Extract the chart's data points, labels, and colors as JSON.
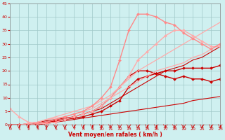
{
  "xlabel": "Vent moyen/en rafales ( km/h )",
  "bg_color": "#cff0f0",
  "grid_color": "#a0c8c8",
  "xlim": [
    0,
    23
  ],
  "ylim": [
    0,
    45
  ],
  "yticks": [
    0,
    5,
    10,
    15,
    20,
    25,
    30,
    35,
    40,
    45
  ],
  "xticks": [
    0,
    1,
    2,
    3,
    4,
    5,
    6,
    7,
    8,
    9,
    10,
    11,
    12,
    13,
    14,
    15,
    16,
    17,
    18,
    19,
    20,
    21,
    22,
    23
  ],
  "series": [
    {
      "x": [
        0,
        1,
        2,
        3,
        4,
        5,
        6,
        7,
        8,
        9,
        10,
        11,
        12,
        13,
        14,
        15,
        16,
        17,
        18,
        19,
        20,
        21,
        22,
        23
      ],
      "y": [
        0,
        0,
        0,
        0,
        0.5,
        1,
        1.5,
        2,
        2.5,
        3,
        3.5,
        4,
        4.5,
        5,
        5.5,
        6,
        6.5,
        7,
        7.5,
        8,
        9,
        9.5,
        10,
        10.5
      ],
      "color": "#cc0000",
      "linewidth": 0.8,
      "marker": null
    },
    {
      "x": [
        0,
        1,
        2,
        3,
        4,
        5,
        6,
        7,
        8,
        9,
        10,
        11,
        12,
        13,
        14,
        15,
        16,
        17,
        18,
        19,
        20,
        21,
        22,
        23
      ],
      "y": [
        0,
        0,
        0.5,
        1,
        1.5,
        2,
        2.5,
        3,
        4,
        5,
        6,
        8,
        10,
        12,
        14,
        16,
        18,
        20,
        21,
        22,
        24,
        25,
        27,
        29
      ],
      "color": "#cc0000",
      "linewidth": 0.8,
      "marker": null
    },
    {
      "x": [
        0,
        1,
        2,
        3,
        4,
        5,
        6,
        7,
        8,
        9,
        10,
        11,
        12,
        13,
        14,
        15,
        16,
        17,
        18,
        19,
        20,
        21,
        22,
        23
      ],
      "y": [
        0,
        0,
        0,
        0.5,
        1,
        1.5,
        2,
        2.5,
        3,
        4,
        5,
        7,
        9,
        14,
        17,
        18,
        19,
        20,
        20,
        21,
        21,
        21,
        21,
        22
      ],
      "color": "#cc0000",
      "linewidth": 1.0,
      "marker": "D",
      "markersize": 2.0
    },
    {
      "x": [
        0,
        1,
        2,
        3,
        4,
        5,
        6,
        7,
        8,
        9,
        10,
        11,
        12,
        13,
        14,
        15,
        16,
        17,
        18,
        19,
        20,
        21,
        22,
        23
      ],
      "y": [
        0,
        0,
        0,
        0.5,
        1,
        1.5,
        2,
        3,
        4,
        5,
        7,
        10,
        14,
        18,
        20,
        20,
        19,
        18,
        17,
        18,
        17,
        17,
        16,
        17
      ],
      "color": "#cc0000",
      "linewidth": 1.0,
      "marker": "D",
      "markersize": 2.0
    },
    {
      "x": [
        0,
        1,
        2,
        3,
        4,
        5,
        6,
        7,
        8,
        9,
        10,
        11,
        12,
        13,
        14,
        15,
        16,
        17,
        18,
        19,
        20,
        21,
        22,
        23
      ],
      "y": [
        0,
        0,
        0.5,
        1,
        2,
        3,
        4,
        5,
        6,
        7,
        9,
        11,
        14,
        17,
        20,
        22,
        24,
        26,
        28,
        30,
        32,
        34,
        36,
        38
      ],
      "color": "#ffaaaa",
      "linewidth": 0.9,
      "marker": null
    },
    {
      "x": [
        0,
        1,
        2,
        3,
        4,
        5,
        6,
        7,
        8,
        9,
        10,
        11,
        12,
        13,
        14,
        15,
        16,
        17,
        18,
        19,
        20,
        21,
        22,
        23
      ],
      "y": [
        0,
        0,
        0.5,
        1,
        2,
        2.5,
        3,
        4,
        5,
        6,
        8,
        10,
        12,
        14,
        16,
        18,
        20,
        21,
        22,
        23,
        25,
        26,
        28,
        30
      ],
      "color": "#ffaaaa",
      "linewidth": 0.9,
      "marker": null
    },
    {
      "x": [
        0,
        1,
        2,
        3,
        4,
        5,
        6,
        7,
        8,
        9,
        10,
        11,
        12,
        13,
        14,
        15,
        16,
        17,
        18,
        19,
        20,
        21,
        22,
        23
      ],
      "y": [
        6,
        3,
        1,
        0.5,
        0.5,
        1,
        2,
        3,
        4,
        5,
        7,
        10,
        14,
        18,
        24,
        27,
        30,
        33,
        35,
        35,
        33,
        31,
        29,
        29
      ],
      "color": "#ffaaaa",
      "linewidth": 1.0,
      "marker": "D",
      "markersize": 2.0
    },
    {
      "x": [
        0,
        1,
        2,
        3,
        4,
        5,
        6,
        7,
        8,
        9,
        10,
        11,
        12,
        13,
        14,
        15,
        16,
        17,
        18,
        19,
        20,
        21,
        22,
        23
      ],
      "y": [
        0,
        0,
        0,
        0.5,
        1,
        2,
        3,
        4,
        5,
        7,
        10,
        14,
        24,
        35,
        41,
        41,
        40,
        38,
        37,
        34,
        32,
        30,
        28,
        30
      ],
      "color": "#ff8888",
      "linewidth": 1.0,
      "marker": "D",
      "markersize": 2.0
    }
  ]
}
